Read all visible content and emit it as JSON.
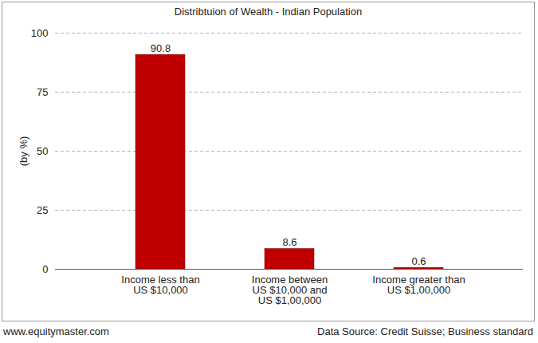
{
  "chart_data": {
    "type": "bar",
    "title": "Distribtuion of Wealth - Indian Population",
    "y_label": "(by %)",
    "categories": [
      "Income less than\nUS $10,000",
      "Income between\nUS $10,000 and\nUS $1,00,000",
      "Income greater than\nUS $1,00,000"
    ],
    "values": [
      90.8,
      8.6,
      0.6
    ],
    "color": "#c00000",
    "ylim": [
      0,
      100
    ],
    "yticks": [
      0,
      25,
      50,
      75,
      100
    ],
    "grid": true,
    "data_labels": true,
    "annotations": [
      "www.equitymaster.com",
      "Data Source: Credit Suisse; Business standard"
    ]
  }
}
